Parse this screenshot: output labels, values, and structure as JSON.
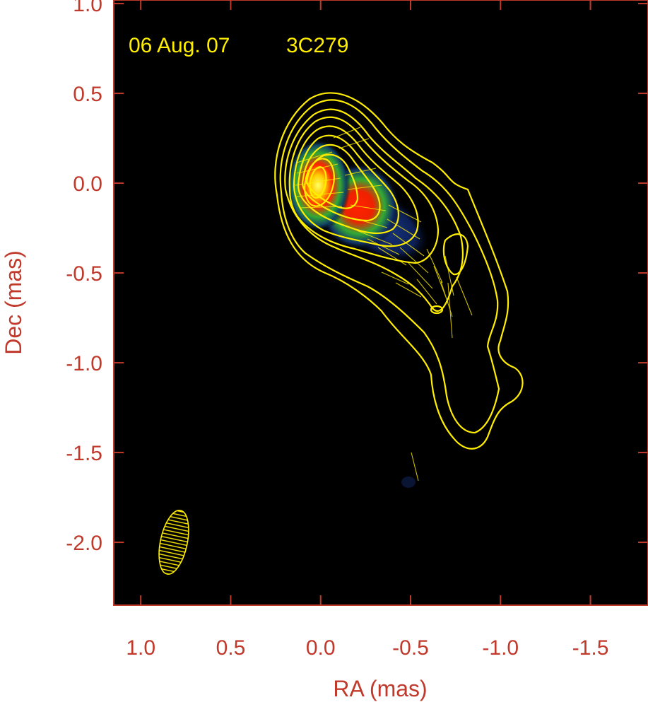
{
  "chart_data": {
    "type": "heatmap",
    "title": "",
    "panel_label": {
      "date": "06 Aug. 07",
      "source": "3C279"
    },
    "xlabel": "RA (mas)",
    "ylabel": "Dec (mas)",
    "x_reversed": true,
    "xlim": [
      1.15,
      -1.82
    ],
    "ylim": [
      -2.35,
      1.02
    ],
    "x_ticks": [
      1.0,
      0.5,
      0.0,
      -0.5,
      -1.0,
      -1.5
    ],
    "x_tick_labels": [
      "1.0",
      "0.5",
      "0.0",
      "-0.5",
      "-1.0",
      "-1.5"
    ],
    "y_ticks": [
      1.0,
      0.5,
      0.0,
      -0.5,
      -1.0,
      -1.5,
      -2.0
    ],
    "y_tick_labels": [
      "1.0",
      "0.5",
      "0.0",
      "-0.5",
      "-1.0",
      "-1.5",
      "-2.0"
    ],
    "grid": false,
    "colors": {
      "background": "#000000",
      "frame": "#c0392b",
      "contours": "#ffee00",
      "panel_label": "#ffee00"
    },
    "polarized_intensity_peaks": [
      {
        "ra": 0.0,
        "dec": -0.03
      },
      {
        "ra": -0.22,
        "dec": -0.12
      }
    ],
    "contour_levels": 10,
    "beam": {
      "ra": 0.82,
      "dec": -2.0,
      "major": 0.36,
      "minor": 0.14,
      "pa_deg": 12
    }
  }
}
